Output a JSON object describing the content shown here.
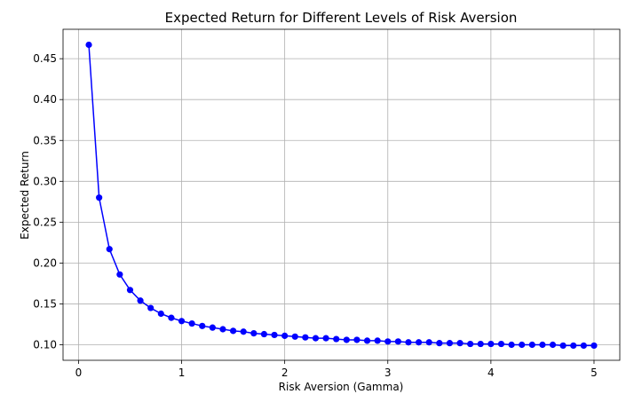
{
  "chart_data": {
    "type": "line",
    "title": "Expected Return for Different Levels of Risk Aversion",
    "xlabel": "Risk Aversion (Gamma)",
    "ylabel": "Expected Return",
    "xlim": [
      -0.15,
      5.25
    ],
    "ylim": [
      0.081,
      0.486
    ],
    "xticks": [
      0,
      1,
      2,
      3,
      4,
      5
    ],
    "xtick_labels": [
      "0",
      "1",
      "2",
      "3",
      "4",
      "5"
    ],
    "yticks": [
      0.1,
      0.15,
      0.2,
      0.25,
      0.3,
      0.35,
      0.4,
      0.45
    ],
    "ytick_labels": [
      "0.10",
      "0.15",
      "0.20",
      "0.25",
      "0.30",
      "0.35",
      "0.40",
      "0.45"
    ],
    "grid": true,
    "color": "#0000ff",
    "series": [
      {
        "x": [
          0.1,
          0.2,
          0.3,
          0.4,
          0.5,
          0.6,
          0.7,
          0.8,
          0.9,
          1.0,
          1.1,
          1.2,
          1.3,
          1.4,
          1.5,
          1.6,
          1.7,
          1.8,
          1.9,
          2.0,
          2.1,
          2.2,
          2.3,
          2.4,
          2.5,
          2.6,
          2.7,
          2.8,
          2.9,
          3.0,
          3.1,
          3.2,
          3.3,
          3.4,
          3.5,
          3.6,
          3.7,
          3.8,
          3.9,
          4.0,
          4.1,
          4.2,
          4.3,
          4.4,
          4.5,
          4.6,
          4.7,
          4.8,
          4.9,
          5.0
        ],
        "values": [
          0.467,
          0.28,
          0.217,
          0.186,
          0.167,
          0.154,
          0.145,
          0.138,
          0.133,
          0.129,
          0.126,
          0.123,
          0.121,
          0.119,
          0.117,
          0.116,
          0.114,
          0.113,
          0.112,
          0.111,
          0.11,
          0.109,
          0.108,
          0.108,
          0.107,
          0.106,
          0.106,
          0.105,
          0.105,
          0.104,
          0.104,
          0.103,
          0.103,
          0.103,
          0.102,
          0.102,
          0.102,
          0.101,
          0.101,
          0.101,
          0.101,
          0.1,
          0.1,
          0.1,
          0.1,
          0.1,
          0.099,
          0.099,
          0.099,
          0.099
        ]
      }
    ]
  }
}
